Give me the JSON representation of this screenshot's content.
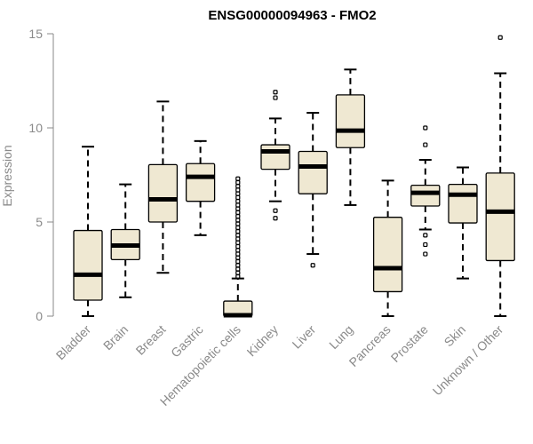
{
  "chart_data": {
    "type": "boxplot",
    "title": "ENSG00000094963 - FMO2",
    "xlabel": "",
    "ylabel": "Expression",
    "ylim": [
      0,
      15
    ],
    "yticks": [
      0,
      5,
      10,
      15
    ],
    "categories": [
      "Bladder",
      "Brain",
      "Breast",
      "Gastric",
      "Hematopoietic cells",
      "Kidney",
      "Liver",
      "Lung",
      "Pancreas",
      "Prostate",
      "Skin",
      "Unknown / Other"
    ],
    "boxes": [
      {
        "category": "Bladder",
        "whisker_low": 0.0,
        "q1": 0.85,
        "median": 2.2,
        "q3": 4.55,
        "whisker_high": 9.0,
        "outliers": []
      },
      {
        "category": "Brain",
        "whisker_low": 1.0,
        "q1": 3.0,
        "median": 3.75,
        "q3": 4.6,
        "whisker_high": 7.0,
        "outliers": []
      },
      {
        "category": "Breast",
        "whisker_low": 2.3,
        "q1": 5.0,
        "median": 6.2,
        "q3": 8.05,
        "whisker_high": 11.4,
        "outliers": []
      },
      {
        "category": "Gastric",
        "whisker_low": 4.3,
        "q1": 6.1,
        "median": 7.4,
        "q3": 8.1,
        "whisker_high": 9.3,
        "outliers": []
      },
      {
        "category": "Hematopoietic cells",
        "whisker_low": 0.0,
        "q1": 0.0,
        "median": 0.05,
        "q3": 0.8,
        "whisker_high": 2.0,
        "outliers": [
          2.1,
          2.3,
          2.5,
          2.7,
          2.9,
          3.1,
          3.3,
          3.5,
          3.7,
          3.9,
          4.1,
          4.3,
          4.5,
          4.7,
          4.9,
          5.1,
          5.3,
          5.5,
          5.7,
          5.9,
          6.1,
          6.3,
          6.5,
          6.7,
          6.9,
          7.1,
          7.3
        ]
      },
      {
        "category": "Kidney",
        "whisker_low": 6.1,
        "q1": 7.8,
        "median": 8.75,
        "q3": 9.1,
        "whisker_high": 10.5,
        "outliers": [
          5.2,
          5.6,
          11.6,
          11.9
        ]
      },
      {
        "category": "Liver",
        "whisker_low": 3.3,
        "q1": 6.5,
        "median": 7.95,
        "q3": 8.75,
        "whisker_high": 10.8,
        "outliers": [
          2.7
        ]
      },
      {
        "category": "Lung",
        "whisker_low": 5.9,
        "q1": 8.95,
        "median": 9.85,
        "q3": 11.75,
        "whisker_high": 13.1,
        "outliers": []
      },
      {
        "category": "Pancreas",
        "whisker_low": 0.0,
        "q1": 1.3,
        "median": 2.55,
        "q3": 5.25,
        "whisker_high": 7.2,
        "outliers": []
      },
      {
        "category": "Prostate",
        "whisker_low": 4.6,
        "q1": 5.85,
        "median": 6.55,
        "q3": 6.95,
        "whisker_high": 8.3,
        "outliers": [
          3.3,
          3.8,
          4.3,
          9.1,
          10.0
        ]
      },
      {
        "category": "Skin",
        "whisker_low": 2.0,
        "q1": 4.95,
        "median": 6.45,
        "q3": 7.0,
        "whisker_high": 7.9,
        "outliers": []
      },
      {
        "category": "Unknown / Other",
        "whisker_low": 0.0,
        "q1": 2.95,
        "median": 5.55,
        "q3": 7.6,
        "whisker_high": 12.9,
        "outliers": [
          14.8
        ]
      }
    ],
    "colors": {
      "box_fill": "#efe8d2",
      "box_stroke": "#000000",
      "axis": "#8a8a8a"
    },
    "grid": false,
    "legend": "none"
  }
}
